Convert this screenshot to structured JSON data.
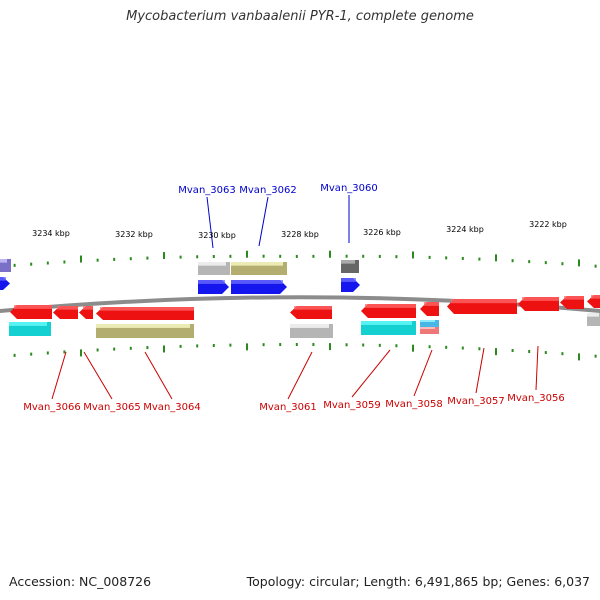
{
  "title": "Mycobacterium vanbaalenii PYR-1, complete genome",
  "footer": {
    "accession": "Accession: NC_008726",
    "topology": "Topology: circular; Length: 6,491,865 bp; Genes: 6,037"
  },
  "colors": {
    "backbone": "#8c8c8c",
    "tick": "#2a8a1e",
    "red": "#ee1111",
    "blue": "#1515ee",
    "gray": "#b5b5b5",
    "darkgray": "#666666",
    "olive": "#b3ae70",
    "cyan": "#14d0d0",
    "lightblue": "#49b6e8",
    "pink": "#ee7777",
    "lavender": "#7b70c8",
    "label_top": "#0000cc",
    "label_bottom": "#cc0000"
  },
  "scale_labels": [
    "3234 kbp",
    "3232 kbp",
    "3230 kbp",
    "3228 kbp",
    "3226 kbp",
    "3224 kbp",
    "3222 kbp"
  ],
  "gene_labels_top": [
    "Mvan_3063",
    "Mvan_3062",
    "Mvan_3060"
  ],
  "gene_labels_bottom": [
    "Mvan_3066",
    "Mvan_3065",
    "Mvan_3064",
    "Mvan_3061",
    "Mvan_3059",
    "Mvan_3058",
    "Mvan_3057",
    "Mvan_3056"
  ]
}
